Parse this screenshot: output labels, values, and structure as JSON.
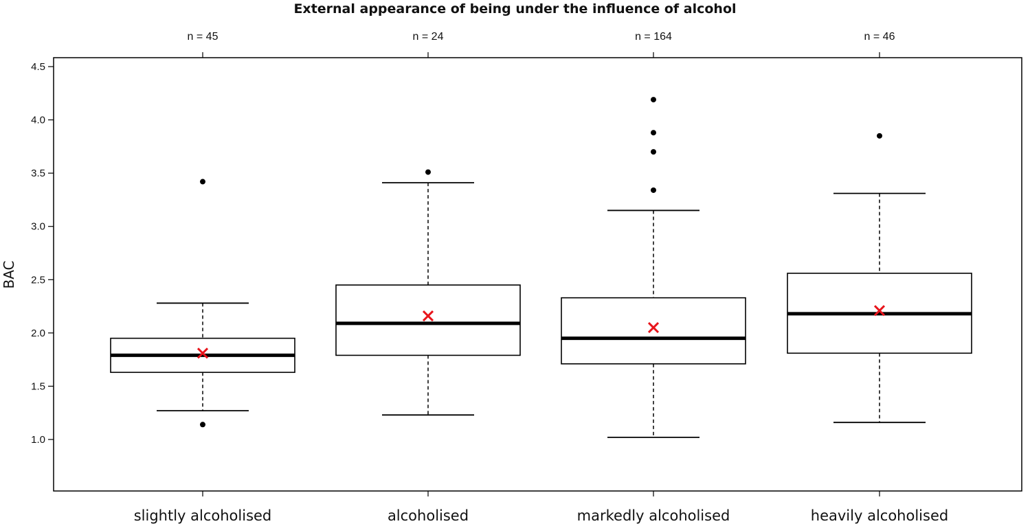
{
  "chart_data": {
    "type": "boxplot",
    "title": "External appearance of being under the influence of alcohol",
    "xlabel": "",
    "ylabel": "BAC",
    "ylim": [
      0.5,
      4.65
    ],
    "yticks": [
      "1.0",
      "1.5",
      "2.0",
      "2.5",
      "3.0",
      "3.5",
      "4.0",
      "4.5"
    ],
    "grid": false,
    "legend": "none",
    "categories": [
      "slightly alcoholised",
      "alcoholised",
      "markedly alcoholised",
      "heavily alcoholised"
    ],
    "n_labels": [
      "n = 45",
      "n = 24",
      "n = 164",
      "n = 46"
    ],
    "boxes": [
      {
        "whisker_low": 1.27,
        "q1": 1.63,
        "median": 1.79,
        "q3": 1.95,
        "whisker_high": 2.28,
        "mean": 1.81,
        "outliers": [
          3.42,
          1.14
        ]
      },
      {
        "whisker_low": 1.23,
        "q1": 1.79,
        "median": 2.09,
        "q3": 2.45,
        "whisker_high": 3.41,
        "mean": 2.16,
        "outliers": [
          3.51
        ]
      },
      {
        "whisker_low": 1.02,
        "q1": 1.71,
        "median": 1.95,
        "q3": 2.33,
        "whisker_high": 3.15,
        "mean": 2.05,
        "outliers": [
          3.34,
          3.7,
          3.88,
          4.19
        ]
      },
      {
        "whisker_low": 1.16,
        "q1": 1.81,
        "median": 2.18,
        "q3": 2.56,
        "whisker_high": 3.31,
        "mean": 2.21,
        "outliers": [
          3.85
        ]
      }
    ],
    "colors": {
      "mean_marker": "#e8141b",
      "box": "#000000"
    }
  }
}
